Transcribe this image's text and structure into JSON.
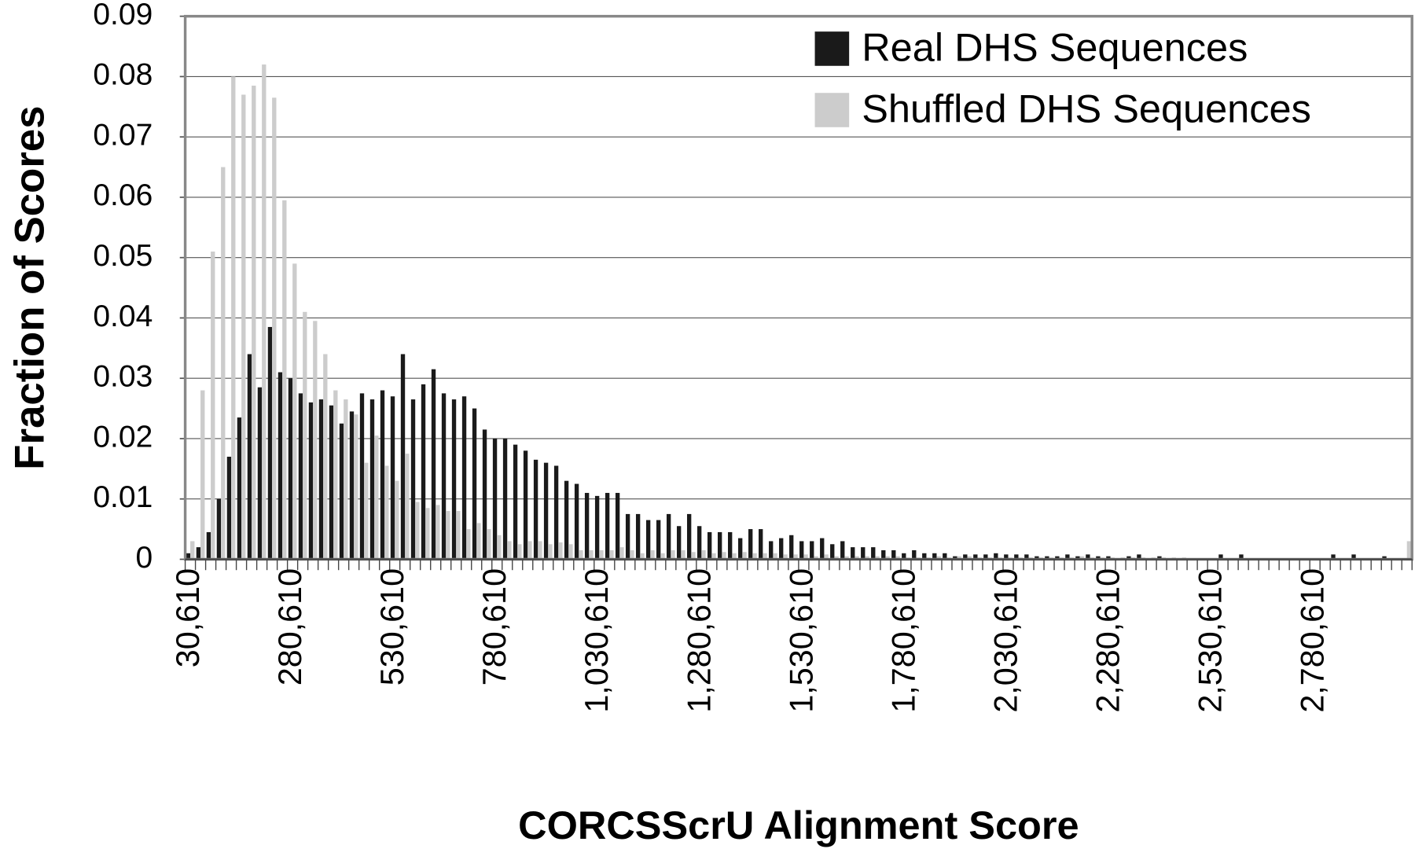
{
  "chart_data": {
    "type": "bar",
    "xlabel": "CORCSScrU Alignment Score",
    "ylabel": "Fraction of Scores",
    "categories": [
      "30,610",
      null,
      null,
      null,
      null,
      null,
      null,
      null,
      null,
      null,
      "280,610",
      null,
      null,
      null,
      null,
      null,
      null,
      null,
      null,
      null,
      "530,610",
      null,
      null,
      null,
      null,
      null,
      null,
      null,
      null,
      null,
      "780,610",
      null,
      null,
      null,
      null,
      null,
      null,
      null,
      null,
      null,
      "1,030,610",
      null,
      null,
      null,
      null,
      null,
      null,
      null,
      null,
      null,
      "1,280,610",
      null,
      null,
      null,
      null,
      null,
      null,
      null,
      null,
      null,
      "1,530,610",
      null,
      null,
      null,
      null,
      null,
      null,
      null,
      null,
      null,
      "1,780,610",
      null,
      null,
      null,
      null,
      null,
      null,
      null,
      null,
      null,
      "2,030,610",
      null,
      null,
      null,
      null,
      null,
      null,
      null,
      null,
      null,
      "2,280,610",
      null,
      null,
      null,
      null,
      null,
      null,
      null,
      null,
      null,
      "2,530,610",
      null,
      null,
      null,
      null,
      null,
      null,
      null,
      null,
      null,
      "2,780,610",
      null,
      null,
      null,
      null,
      null,
      null,
      null,
      null,
      null
    ],
    "series": [
      {
        "name": "Real DHS Sequences",
        "color": "#1a1a1a",
        "values": [
          0.001,
          0.002,
          0.0045,
          0.01,
          0.017,
          0.0235,
          0.034,
          0.0285,
          0.0385,
          0.031,
          0.03,
          0.0275,
          0.026,
          0.0265,
          0.0255,
          0.0225,
          0.0245,
          0.0275,
          0.0265,
          0.028,
          0.027,
          0.034,
          0.0265,
          0.029,
          0.0315,
          0.0275,
          0.0265,
          0.027,
          0.025,
          0.0215,
          0.02,
          0.02,
          0.019,
          0.018,
          0.0165,
          0.016,
          0.0155,
          0.013,
          0.0125,
          0.011,
          0.0105,
          0.011,
          0.011,
          0.0075,
          0.0075,
          0.0065,
          0.0065,
          0.0075,
          0.0055,
          0.0075,
          0.0055,
          0.0045,
          0.0045,
          0.0045,
          0.0035,
          0.005,
          0.005,
          0.003,
          0.0035,
          0.004,
          0.003,
          0.003,
          0.0035,
          0.0025,
          0.003,
          0.002,
          0.002,
          0.002,
          0.0015,
          0.0015,
          0.001,
          0.0015,
          0.001,
          0.001,
          0.001,
          0.0005,
          0.0008,
          0.0008,
          0.0008,
          0.001,
          0.0008,
          0.0008,
          0.0008,
          0.0005,
          0.0005,
          0.0005,
          0.0008,
          0.0005,
          0.0008,
          0.0005,
          0.0005,
          0,
          0.0005,
          0.0008,
          0,
          0.0005,
          0,
          0,
          0,
          0,
          0,
          0.0008,
          0,
          0.0008,
          0,
          0,
          0,
          0,
          0,
          0,
          0,
          0,
          0.0008,
          0,
          0.0008,
          0,
          0,
          0.0005,
          0,
          0
        ]
      },
      {
        "name": "Shuffled DHS Sequences",
        "color": "#cccccc",
        "values": [
          0.003,
          0.028,
          0.051,
          0.065,
          0.08,
          0.077,
          0.0785,
          0.082,
          0.0765,
          0.0595,
          0.049,
          0.041,
          0.0395,
          0.034,
          0.028,
          0.0265,
          0.024,
          0.016,
          0.0205,
          0.0155,
          0.013,
          0.0175,
          0.0095,
          0.0085,
          0.009,
          0.008,
          0.008,
          0.005,
          0.006,
          0.005,
          0.004,
          0.003,
          0.0025,
          0.003,
          0.003,
          0.0025,
          0.0028,
          0.0025,
          0.0015,
          0.0015,
          0.0015,
          0.0015,
          0.002,
          0.0015,
          0.001,
          0.0015,
          0.001,
          0.0015,
          0.0015,
          0.0012,
          0.0015,
          0.001,
          0.0012,
          0.001,
          0.0012,
          0.001,
          0.001,
          0.001,
          0.0008,
          0.0008,
          0.0008,
          0.0005,
          0.0008,
          0.0005,
          0.0005,
          0.0005,
          0.0005,
          0.0005,
          0.0005,
          0.0005,
          0.0003,
          0.0003,
          0.0003,
          0.0005,
          0.0003,
          0.0005,
          0.0005,
          0.0003,
          0.0003,
          0.0003,
          0.0003,
          0.0003,
          0.0003,
          0.0003,
          0.0003,
          0.0003,
          0.0003,
          0.0005,
          0.0003,
          0.0003,
          0.0003,
          0.0003,
          0.0003,
          0.0003,
          0.0003,
          0.0003,
          0.0003,
          0.0003,
          0,
          0,
          0,
          0,
          0,
          0,
          0,
          0,
          0,
          0,
          0,
          0,
          0,
          0,
          0,
          0,
          0,
          0,
          0,
          0,
          0,
          0.003
        ]
      }
    ],
    "ylim": [
      0,
      0.09
    ],
    "yticks": [
      0,
      0.01,
      0.02,
      0.03,
      0.04,
      0.05,
      0.06,
      0.07,
      0.08,
      0.09
    ],
    "grid": true,
    "legend": "upper right"
  }
}
